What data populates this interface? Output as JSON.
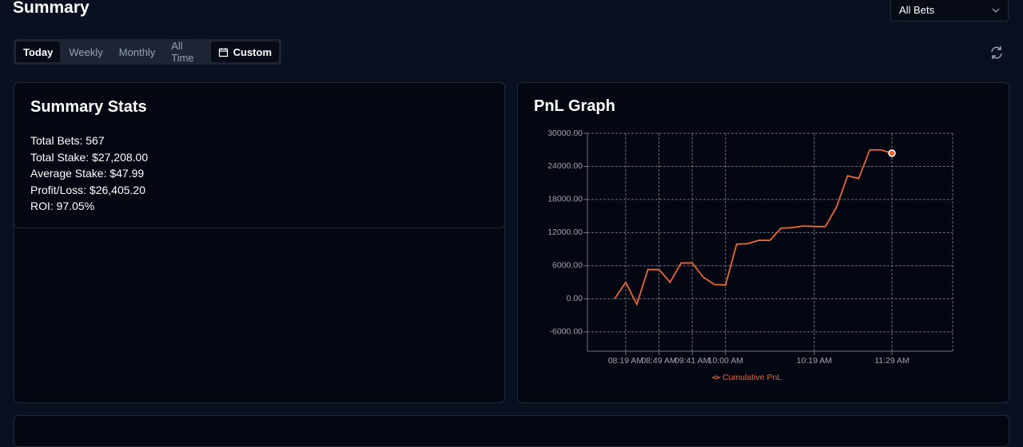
{
  "header": {
    "title": "Summary",
    "filter": "All Bets"
  },
  "tabs": {
    "items": [
      "Today",
      "Weekly",
      "Monthly",
      "All Time",
      "Custom"
    ],
    "active": 0
  },
  "stats": {
    "title": "Summary Stats",
    "items": [
      "Total Bets: 567",
      "Total Stake: $27,208.00",
      "Average Stake: $47.99",
      "Profit/Loss: $26,405.20",
      "ROI: 97.05%"
    ]
  },
  "chart_data": {
    "type": "line",
    "title": "PnL Graph",
    "categories": [
      null,
      "08:19 AM",
      null,
      null,
      "08:49 AM",
      null,
      null,
      "09:41 AM",
      null,
      null,
      "10:00 AM",
      null,
      null,
      null,
      null,
      null,
      null,
      null,
      "10:19 AM",
      null,
      null,
      null,
      null,
      null,
      null,
      "11:29 AM"
    ],
    "series": [
      {
        "name": "Cumulative PnL",
        "color": "#f0642d",
        "values": [
          0,
          3000,
          -1000,
          5300,
          5300,
          3000,
          6500,
          6500,
          3900,
          2600,
          2500,
          9900,
          10000,
          10600,
          10600,
          12800,
          12900,
          13200,
          13100,
          13100,
          16600,
          22300,
          21800,
          27000,
          27000,
          26405.2
        ]
      }
    ],
    "ylim": [
      -9500,
      30000
    ],
    "yticks": [
      {
        "value": -6000,
        "label": "-6000.00"
      },
      {
        "value": 0,
        "label": "0.00"
      },
      {
        "value": 6000,
        "label": "6000.00"
      },
      {
        "value": 12000,
        "label": "12000.00"
      },
      {
        "value": 18000,
        "label": "18000.00"
      },
      {
        "value": 24000,
        "label": "24000.00"
      },
      {
        "value": 30000,
        "label": "30000.00"
      }
    ],
    "grid": true
  }
}
